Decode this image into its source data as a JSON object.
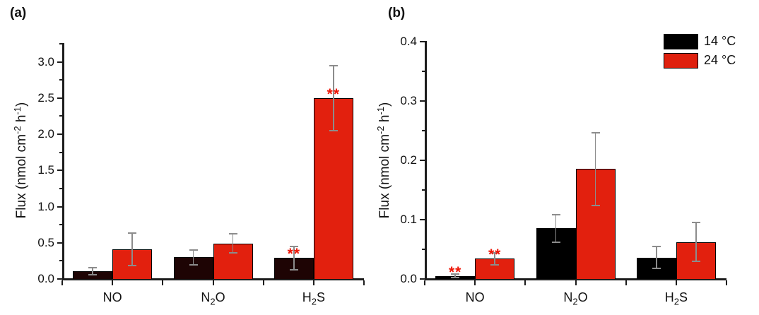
{
  "figure": {
    "panel_a_label": "(a)",
    "panel_b_label": "(b)",
    "background": "#ffffff"
  },
  "axis_label": {
    "seg1": "Flux (nmol cm",
    "sup1": "-2",
    "seg2": " h",
    "sup2": "-1",
    "seg3": ")"
  },
  "legend": {
    "position": "top-right",
    "items": [
      {
        "label": "14 °C",
        "color": "#000000"
      },
      {
        "label": "24 °C",
        "color": "#df200e"
      }
    ]
  },
  "colors": {
    "axis": "#1c1c1c",
    "text": "#111111",
    "bar_border": "#000000",
    "error_bar": "#8c8c8c",
    "significance": "#ee1505",
    "panel_a_dark_bar": "#1e0404",
    "panel_b_dark_bar": "#000000",
    "red_bar": "#e2200e"
  },
  "chart_data": [
    {
      "panel": "a",
      "type": "bar",
      "title": "",
      "xlabel": "",
      "ylabel": "Flux (nmol cm⁻² h⁻¹)",
      "categories": [
        "NO",
        "N₂O",
        "H₂S"
      ],
      "categories_rich": [
        {
          "pre": "NO",
          "sub": "",
          "post": ""
        },
        {
          "pre": "N",
          "sub": "2",
          "post": "O"
        },
        {
          "pre": "H",
          "sub": "2",
          "post": "S"
        }
      ],
      "ylim": [
        0,
        3.25
      ],
      "ytick_step": 0.5,
      "minor_step": 0.25,
      "yticks": [
        "0.0",
        "0.5",
        "1.0",
        "1.5",
        "2.0",
        "2.5",
        "3.0"
      ],
      "grid": false,
      "legend_position": "none",
      "series": [
        {
          "name": "14 °C",
          "color": "#1e0404",
          "values": [
            0.1,
            0.29,
            0.28
          ],
          "errors": [
            0.05,
            0.1,
            0.16
          ],
          "significance": [
            "",
            "",
            "**"
          ]
        },
        {
          "name": "24 °C",
          "color": "#e2200e",
          "values": [
            0.4,
            0.48,
            2.49
          ],
          "errors": [
            0.22,
            0.13,
            0.45
          ],
          "significance": [
            "",
            "",
            "**"
          ]
        }
      ]
    },
    {
      "panel": "b",
      "type": "bar",
      "title": "",
      "xlabel": "",
      "ylabel": "Flux (nmol cm⁻² h⁻¹)",
      "categories": [
        "NO",
        "N₂O",
        "H₂S"
      ],
      "categories_rich": [
        {
          "pre": "NO",
          "sub": "",
          "post": ""
        },
        {
          "pre": "N",
          "sub": "2",
          "post": "O"
        },
        {
          "pre": "H",
          "sub": "2",
          "post": "S"
        }
      ],
      "ylim": [
        0,
        0.4
      ],
      "ytick_step": 0.1,
      "minor_step": 0.05,
      "yticks": [
        "0.0",
        "0.1",
        "0.2",
        "0.3",
        "0.4"
      ],
      "grid": false,
      "legend_position": "top-right",
      "series": [
        {
          "name": "14 °C",
          "color": "#000000",
          "values": [
            0.004,
            0.084,
            0.035
          ],
          "errors": [
            0.003,
            0.023,
            0.018
          ],
          "significance": [
            "**",
            "",
            ""
          ]
        },
        {
          "name": "24 °C",
          "color": "#e2200e",
          "values": [
            0.033,
            0.184,
            0.061
          ],
          "errors": [
            0.01,
            0.061,
            0.033
          ],
          "significance": [
            "**",
            "",
            ""
          ]
        }
      ]
    }
  ]
}
